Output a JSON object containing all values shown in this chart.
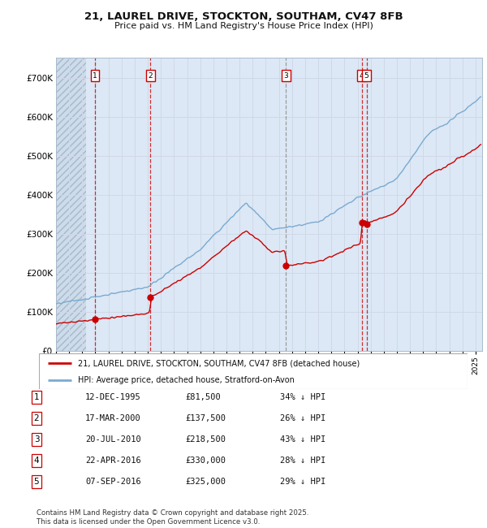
{
  "title_line1": "21, LAUREL DRIVE, STOCKTON, SOUTHAM, CV47 8FB",
  "title_line2": "Price paid vs. HM Land Registry's House Price Index (HPI)",
  "ylim": [
    0,
    750000
  ],
  "yticks": [
    0,
    100000,
    200000,
    300000,
    400000,
    500000,
    600000,
    700000
  ],
  "ytick_labels": [
    "£0",
    "£100K",
    "£200K",
    "£300K",
    "£400K",
    "£500K",
    "£600K",
    "£700K"
  ],
  "xlim_start": 1993.0,
  "xlim_end": 2025.5,
  "hpi_color": "#7aaad0",
  "price_color": "#cc0000",
  "sale_marker_color": "#cc0000",
  "vline_color_red": "#cc0000",
  "vline_color_gray": "#888888",
  "grid_color": "#d0d8e8",
  "bg_color": "#ffffff",
  "plot_bg_color": "#dce8f5",
  "hatch_region_end": 1995.3,
  "sale_points": [
    {
      "num": 1,
      "date": "12-DEC-1995",
      "year": 1995.95,
      "price": 81500,
      "pct": "34% ↓ HPI",
      "vline": "red"
    },
    {
      "num": 2,
      "date": "17-MAR-2000",
      "year": 2000.21,
      "price": 137500,
      "pct": "26% ↓ HPI",
      "vline": "red"
    },
    {
      "num": 3,
      "date": "20-JUL-2010",
      "year": 2010.55,
      "price": 218500,
      "pct": "43% ↓ HPI",
      "vline": "gray"
    },
    {
      "num": 4,
      "date": "22-APR-2016",
      "year": 2016.31,
      "price": 330000,
      "pct": "28% ↓ HPI",
      "vline": "red"
    },
    {
      "num": 5,
      "date": "07-SEP-2016",
      "year": 2016.68,
      "price": 325000,
      "pct": "29% ↓ HPI",
      "vline": "red"
    }
  ],
  "legend_entries": [
    "21, LAUREL DRIVE, STOCKTON, SOUTHAM, CV47 8FB (detached house)",
    "HPI: Average price, detached house, Stratford-on-Avon"
  ],
  "footnote": "Contains HM Land Registry data © Crown copyright and database right 2025.\nThis data is licensed under the Open Government Licence v3.0."
}
